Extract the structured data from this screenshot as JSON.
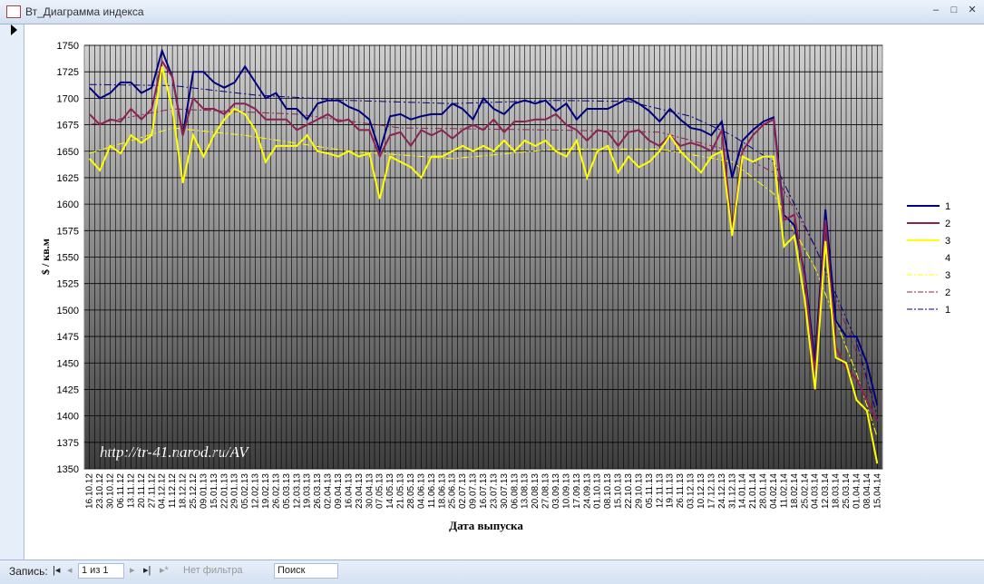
{
  "window": {
    "title": "Вт_Диаграмма индекса",
    "record_label": "Запись:",
    "record_value": "1 из 1",
    "filter": "Нет фильтра",
    "search": "Поиск"
  },
  "chart_data": {
    "type": "line",
    "x_label": "Дата выпуска",
    "y_label": "$ / кв.м",
    "annotation": "http://tr-41.narod.ru/AV",
    "categories": [
      "16.10.12",
      "23.10.12",
      "30.10.12",
      "06.11.12",
      "13.11.12",
      "20.11.12",
      "27.11.12",
      "04.12.12",
      "11.12.12",
      "18.12.12",
      "25.12.12",
      "09.01.13",
      "15.01.13",
      "22.01.13",
      "29.01.13",
      "05.02.13",
      "12.02.13",
      "19.02.13",
      "26.02.13",
      "05.03.13",
      "12.03.13",
      "19.03.13",
      "26.03.13",
      "02.04.13",
      "09.04.13",
      "16.04.13",
      "23.04.13",
      "30.04.13",
      "07.05.13",
      "14.05.13",
      "21.05.13",
      "28.05.13",
      "04.06.13",
      "11.06.13",
      "18.06.13",
      "25.06.13",
      "02.07.13",
      "09.07.13",
      "16.07.13",
      "23.07.13",
      "30.07.13",
      "06.08.13",
      "13.08.13",
      "20.08.13",
      "27.08.13",
      "03.09.13",
      "10.09.13",
      "17.09.13",
      "24.09.13",
      "01.10.13",
      "08.10.13",
      "15.10.13",
      "22.10.13",
      "29.10.13",
      "05.11.13",
      "12.11.13",
      "19.11.13",
      "26.11.13",
      "03.12.13",
      "10.12.13",
      "17.12.13",
      "24.12.13",
      "31.12.13",
      "14.01.14",
      "21.01.14",
      "28.01.14",
      "04.02.14",
      "11.02.14",
      "18.02.14",
      "25.02.14",
      "04.03.14",
      "12.03.14",
      "18.03.14",
      "25.03.14",
      "01.04.14",
      "08.04.14",
      "15.04.14"
    ],
    "series": [
      {
        "name": "1",
        "color": "#00007f",
        "values": [
          1710,
          1700,
          1705,
          1715,
          1715,
          1705,
          1710,
          1745,
          1720,
          1665,
          1725,
          1725,
          1715,
          1710,
          1715,
          1730,
          1715,
          1700,
          1705,
          1690,
          1690,
          1680,
          1695,
          1698,
          1698,
          1692,
          1688,
          1680,
          1650,
          1683,
          1685,
          1680,
          1683,
          1685,
          1685,
          1695,
          1690,
          1680,
          1700,
          1690,
          1685,
          1695,
          1698,
          1695,
          1698,
          1688,
          1695,
          1680,
          1690,
          1690,
          1690,
          1695,
          1700,
          1695,
          1688,
          1678,
          1690,
          1680,
          1672,
          1670,
          1665,
          1678,
          1625,
          1660,
          1670,
          1678,
          1682,
          1590,
          1580,
          1535,
          1450,
          1595,
          1490,
          1475,
          1475,
          1450,
          1410
        ]
      },
      {
        "name": "2",
        "color": "#8b2252",
        "values": [
          1685,
          1675,
          1680,
          1678,
          1690,
          1680,
          1690,
          1735,
          1720,
          1665,
          1700,
          1690,
          1690,
          1685,
          1695,
          1695,
          1690,
          1680,
          1680,
          1680,
          1670,
          1675,
          1680,
          1685,
          1678,
          1680,
          1670,
          1670,
          1645,
          1665,
          1668,
          1655,
          1670,
          1665,
          1670,
          1662,
          1670,
          1675,
          1670,
          1680,
          1668,
          1678,
          1678,
          1680,
          1680,
          1685,
          1675,
          1670,
          1660,
          1670,
          1668,
          1655,
          1668,
          1670,
          1660,
          1655,
          1665,
          1655,
          1658,
          1655,
          1650,
          1670,
          1575,
          1650,
          1665,
          1675,
          1680,
          1585,
          1590,
          1530,
          1440,
          1585,
          1465,
          1445,
          1435,
          1415,
          1395
        ]
      },
      {
        "name": "3",
        "color": "#ffff00",
        "values": [
          1643,
          1632,
          1655,
          1648,
          1665,
          1658,
          1665,
          1730,
          1690,
          1620,
          1665,
          1645,
          1665,
          1680,
          1690,
          1685,
          1670,
          1640,
          1655,
          1655,
          1655,
          1665,
          1650,
          1648,
          1645,
          1650,
          1645,
          1648,
          1605,
          1645,
          1640,
          1635,
          1625,
          1645,
          1645,
          1650,
          1655,
          1650,
          1655,
          1650,
          1660,
          1650,
          1660,
          1655,
          1660,
          1650,
          1645,
          1660,
          1625,
          1650,
          1655,
          1630,
          1645,
          1635,
          1640,
          1650,
          1665,
          1650,
          1640,
          1630,
          1645,
          1650,
          1570,
          1645,
          1640,
          1645,
          1645,
          1560,
          1570,
          1510,
          1425,
          1565,
          1455,
          1450,
          1415,
          1405,
          1355
        ]
      },
      {
        "name": "4",
        "color": "none",
        "values": [
          null,
          null,
          null,
          null,
          null,
          null,
          null,
          null,
          null,
          null,
          null,
          null,
          null,
          null,
          null,
          null,
          null,
          null,
          null,
          null,
          null,
          null,
          null,
          null,
          null,
          null,
          null,
          null,
          null,
          null,
          null,
          null,
          null,
          null,
          null,
          null,
          null,
          null,
          null,
          null,
          null,
          null,
          null,
          null,
          null,
          null,
          null,
          null,
          null,
          null,
          null,
          null,
          null,
          null,
          null,
          null,
          null,
          null,
          null,
          null,
          null,
          null,
          null,
          null,
          null,
          null,
          null,
          null,
          null,
          null,
          null,
          null,
          null,
          null,
          null,
          null,
          null
        ]
      }
    ],
    "trendlines": [
      {
        "name": "3",
        "color": "#ffff00",
        "x": [
          0,
          8,
          15,
          25,
          35,
          45,
          55,
          62,
          66,
          70,
          74,
          76
        ],
        "values": [
          1648,
          1672,
          1665,
          1650,
          1643,
          1652,
          1652,
          1640,
          1610,
          1540,
          1440,
          1380
        ]
      },
      {
        "name": "2",
        "color": "#8b2252",
        "x": [
          0,
          8,
          20,
          30,
          45,
          55,
          62,
          66,
          70,
          74,
          76
        ],
        "values": [
          1675,
          1690,
          1685,
          1672,
          1670,
          1668,
          1650,
          1630,
          1560,
          1460,
          1400
        ]
      },
      {
        "name": "1",
        "color": "#00007f",
        "x": [
          0,
          8,
          16,
          25,
          35,
          45,
          52,
          58,
          62,
          66,
          70,
          74,
          76
        ],
        "values": [
          1713,
          1712,
          1703,
          1698,
          1695,
          1698,
          1697,
          1683,
          1665,
          1640,
          1560,
          1470,
          1400
        ]
      }
    ],
    "ylim": [
      1350,
      1750
    ],
    "yticks": [
      1350,
      1375,
      1400,
      1425,
      1450,
      1475,
      1500,
      1525,
      1550,
      1575,
      1600,
      1625,
      1650,
      1675,
      1700,
      1725,
      1750
    ],
    "grid": true,
    "legend": "right"
  }
}
